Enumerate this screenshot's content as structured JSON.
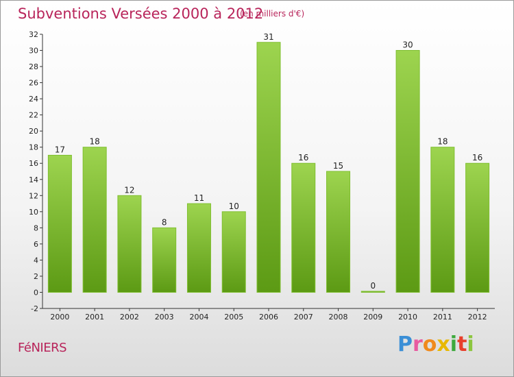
{
  "header": {
    "title": "Subventions Versées 2000 à 2012",
    "subtitle": "(en milliers d'€)"
  },
  "footer": {
    "commune": "FéNIERS",
    "logo_letters": [
      "P",
      "r",
      "o",
      "x",
      "i",
      "t",
      "i"
    ],
    "logo_colors": [
      "#3b8fd6",
      "#e85aa0",
      "#f08a1c",
      "#e8b800",
      "#3daa3d",
      "#e8402c",
      "#8cc63f"
    ]
  },
  "colors": {
    "bar_top": "#9dd44f",
    "bar_bottom": "#5c9a14",
    "bar_edge": "#7fbf2f",
    "accent": "#b8245a"
  },
  "chart_data": {
    "type": "bar",
    "title": "Subventions Versées 2000 à 2012",
    "subtitle": "(en milliers d'€)",
    "xlabel": "",
    "ylabel": "",
    "categories": [
      "2000",
      "2001",
      "2002",
      "2003",
      "2004",
      "2005",
      "2006",
      "2007",
      "2008",
      "2009",
      "2010",
      "2011",
      "2012"
    ],
    "values": [
      17,
      18,
      12,
      8,
      11,
      10,
      31,
      16,
      15,
      0,
      30,
      18,
      16
    ],
    "ylim": [
      -2,
      32
    ],
    "yticks": [
      -2,
      0,
      2,
      4,
      6,
      8,
      10,
      12,
      14,
      16,
      18,
      20,
      22,
      24,
      26,
      28,
      30,
      32
    ],
    "grid": false,
    "legend": "none"
  }
}
